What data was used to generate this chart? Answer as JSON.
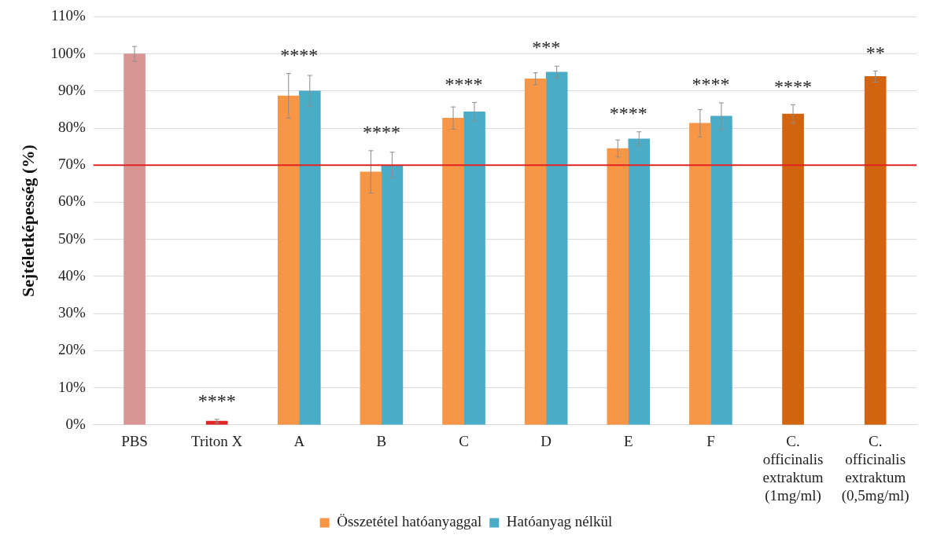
{
  "chart_data": {
    "type": "bar",
    "ylabel": "Sejtéletképesség (%)",
    "categories": [
      "PBS",
      "Triton X",
      "A",
      "B",
      "C",
      "D",
      "E",
      "F",
      "C. officinalis extraktum (1mg/ml)",
      "C. officinalis extraktum (0,5mg/ml)"
    ],
    "series": [
      {
        "colors": [
          "#d99594",
          "#e02424",
          null,
          null,
          null,
          null,
          null,
          null,
          "#d3640f",
          "#d3640f"
        ],
        "values": [
          100,
          1,
          null,
          null,
          null,
          null,
          null,
          null,
          83.8,
          93.9
        ],
        "errors": [
          2,
          0.5,
          null,
          null,
          null,
          null,
          null,
          null,
          2.5,
          1.5
        ],
        "value_labels": [
          null,
          "****",
          null,
          null,
          null,
          null,
          null,
          null,
          "****",
          "**"
        ]
      },
      {
        "name": "Összetétel hatóanyaggal",
        "color": "#f79646",
        "values": [
          null,
          null,
          88.7,
          68.2,
          82.7,
          93.3,
          74.5,
          81.3,
          null,
          null
        ],
        "errors": [
          null,
          null,
          6,
          5.7,
          3,
          1.6,
          2.3,
          3.7,
          null,
          null
        ],
        "value_labels": [
          null,
          null,
          "****",
          "****",
          "****",
          "***",
          "****",
          "****",
          null,
          null
        ]
      },
      {
        "name": "Hatóanyag nélkül",
        "color": "#4bacc6",
        "values": [
          null,
          null,
          90,
          70,
          84.4,
          95.1,
          77.1,
          83.2,
          null,
          null
        ],
        "errors": [
          null,
          null,
          4.2,
          3.5,
          2.5,
          1.6,
          1.9,
          3.6,
          null,
          null
        ]
      }
    ],
    "ylim": [
      0,
      110
    ],
    "yticks": [
      {
        "value": 0,
        "label": "0%"
      },
      {
        "value": 10,
        "label": "10%"
      },
      {
        "value": 20,
        "label": "20%"
      },
      {
        "value": 30,
        "label": "30%"
      },
      {
        "value": 40,
        "label": "40%"
      },
      {
        "value": 50,
        "label": "50%"
      },
      {
        "value": 60,
        "label": "60%"
      },
      {
        "value": 70,
        "label": "70%"
      },
      {
        "value": 80,
        "label": "80%"
      },
      {
        "value": 90,
        "label": "90%"
      },
      {
        "value": 100,
        "label": "100%"
      },
      {
        "value": 110,
        "label": "110%"
      }
    ],
    "ref_lines": [
      {
        "axis": "y",
        "value": 70,
        "color": "#e02424"
      }
    ],
    "grid": "y",
    "legend": "bottom"
  }
}
